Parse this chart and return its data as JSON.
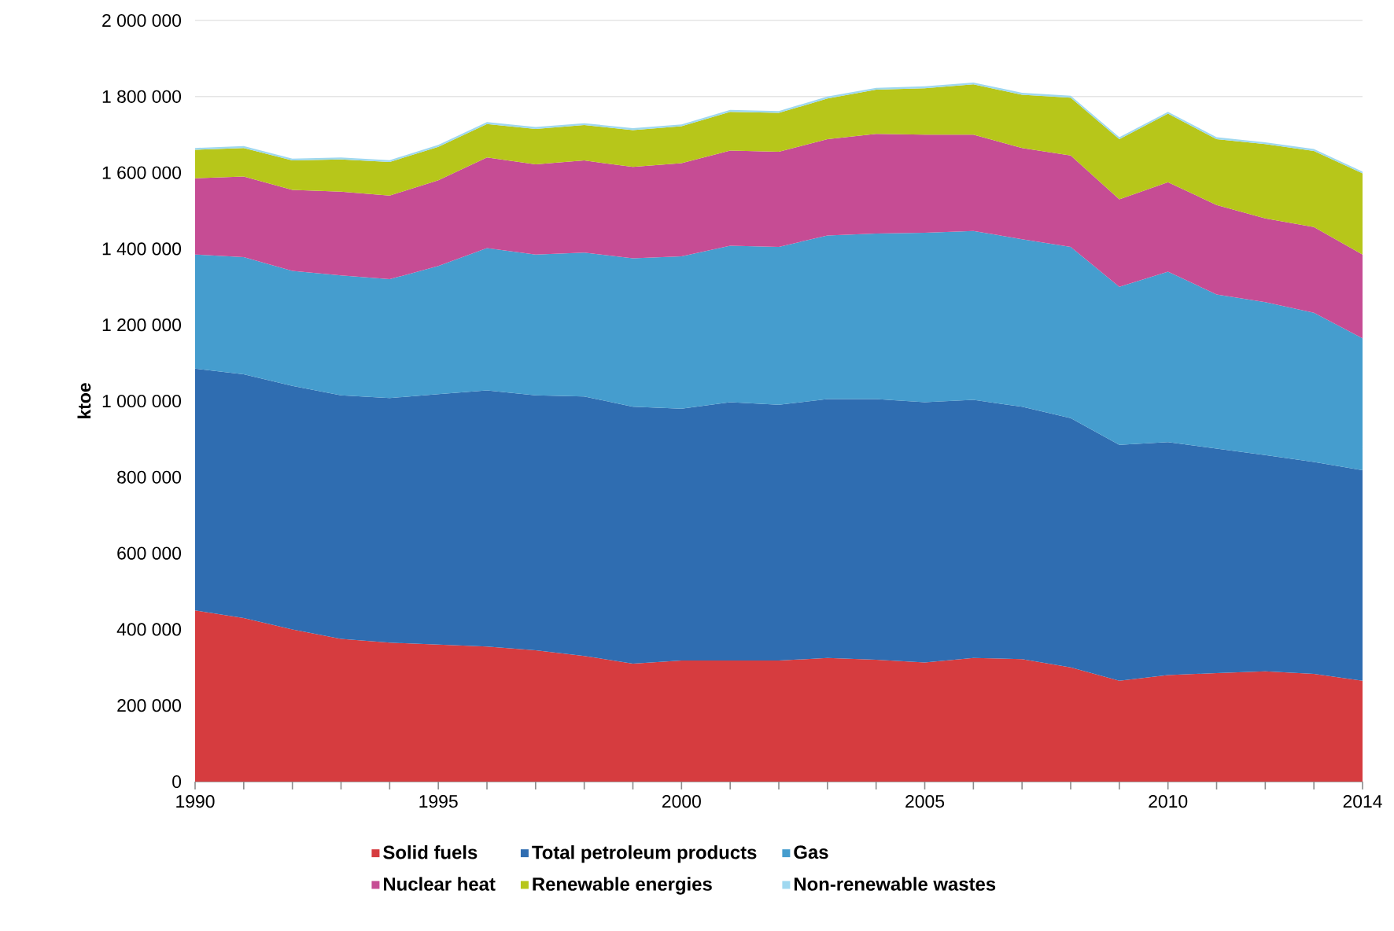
{
  "chart_data": {
    "type": "area",
    "stacked": true,
    "ylabel": "ktoe",
    "x": [
      1990,
      1991,
      1992,
      1993,
      1994,
      1995,
      1996,
      1997,
      1998,
      1999,
      2000,
      2001,
      2002,
      2003,
      2004,
      2005,
      2006,
      2007,
      2008,
      2009,
      2010,
      2011,
      2012,
      2013,
      2014
    ],
    "series": [
      {
        "name": "Solid fuels",
        "color": "#d63c3f",
        "values": [
          450000,
          430000,
          400000,
          375000,
          365000,
          360000,
          355000,
          345000,
          330000,
          310000,
          318000,
          318000,
          318000,
          325000,
          320000,
          313000,
          325000,
          322000,
          300000,
          265000,
          280000,
          285000,
          290000,
          283000,
          265000
        ]
      },
      {
        "name": "Total petroleum products",
        "color": "#2f6db1",
        "values": [
          635000,
          640000,
          640000,
          640000,
          643000,
          658000,
          673000,
          670000,
          682000,
          675000,
          662000,
          679000,
          672000,
          680000,
          685000,
          684000,
          678000,
          663000,
          655000,
          620000,
          612000,
          590000,
          568000,
          557000,
          553000
        ]
      },
      {
        "name": "Gas",
        "color": "#459dce",
        "values": [
          300000,
          308000,
          302000,
          315000,
          312000,
          337000,
          374000,
          370000,
          378000,
          390000,
          400000,
          411000,
          415000,
          430000,
          435000,
          445000,
          444000,
          440000,
          450000,
          415000,
          448000,
          405000,
          402000,
          392000,
          347000
        ]
      },
      {
        "name": "Nuclear heat",
        "color": "#c64c94",
        "values": [
          200000,
          212000,
          213000,
          220000,
          220000,
          225000,
          238000,
          237000,
          242000,
          240000,
          245000,
          250000,
          250000,
          253000,
          262000,
          258000,
          253000,
          240000,
          240000,
          230000,
          235000,
          235000,
          220000,
          225000,
          220000
        ]
      },
      {
        "name": "Renewable energies",
        "color": "#b7c61a",
        "values": [
          75000,
          75000,
          77000,
          85000,
          88000,
          88000,
          88000,
          93000,
          93000,
          97000,
          97000,
          102000,
          102000,
          107000,
          116000,
          122000,
          132000,
          140000,
          152000,
          158000,
          180000,
          173000,
          195000,
          200000,
          213000
        ]
      },
      {
        "name": "Non-renewable wastes",
        "color": "#9fd8f0",
        "values": [
          5000,
          5000,
          5000,
          5000,
          5000,
          5000,
          5000,
          5000,
          5000,
          5000,
          5000,
          5000,
          5000,
          5000,
          5000,
          5000,
          5000,
          5000,
          5000,
          5000,
          5000,
          5000,
          5000,
          5000,
          5000
        ]
      }
    ],
    "xlim": [
      1990,
      2014
    ],
    "xticks": [
      1990,
      {
        "value": 1991,
        "label": null
      },
      {
        "value": 1992,
        "label": null
      },
      {
        "value": 1993,
        "label": null
      },
      {
        "value": 1994,
        "label": null
      },
      1995,
      {
        "value": 1996,
        "label": null
      },
      {
        "value": 1997,
        "label": null
      },
      {
        "value": 1998,
        "label": null
      },
      {
        "value": 1999,
        "label": null
      },
      2000,
      {
        "value": 2001,
        "label": null
      },
      {
        "value": 2002,
        "label": null
      },
      {
        "value": 2003,
        "label": null
      },
      {
        "value": 2004,
        "label": null
      },
      2005,
      {
        "value": 2006,
        "label": null
      },
      {
        "value": 2007,
        "label": null
      },
      {
        "value": 2008,
        "label": null
      },
      {
        "value": 2009,
        "label": null
      },
      2010,
      {
        "value": 2011,
        "label": null
      },
      {
        "value": 2012,
        "label": null
      },
      {
        "value": 2013,
        "label": null
      },
      2014
    ],
    "ylim": [
      0,
      2000000
    ],
    "yticks": [
      0,
      {
        "value": 200000,
        "label": "200 000"
      },
      {
        "value": 400000,
        "label": "400 000"
      },
      {
        "value": 600000,
        "label": "600 000"
      },
      {
        "value": 800000,
        "label": "800 000"
      },
      {
        "value": 1000000,
        "label": "1 000 000"
      },
      {
        "value": 1200000,
        "label": "1 200 000"
      },
      {
        "value": 1400000,
        "label": "1 400 000"
      },
      {
        "value": 1600000,
        "label": "1 600 000"
      },
      {
        "value": 1800000,
        "label": "1 800 000"
      },
      {
        "value": 2000000,
        "label": "2 000 000"
      }
    ],
    "grid": "y",
    "legend": "bottom"
  }
}
